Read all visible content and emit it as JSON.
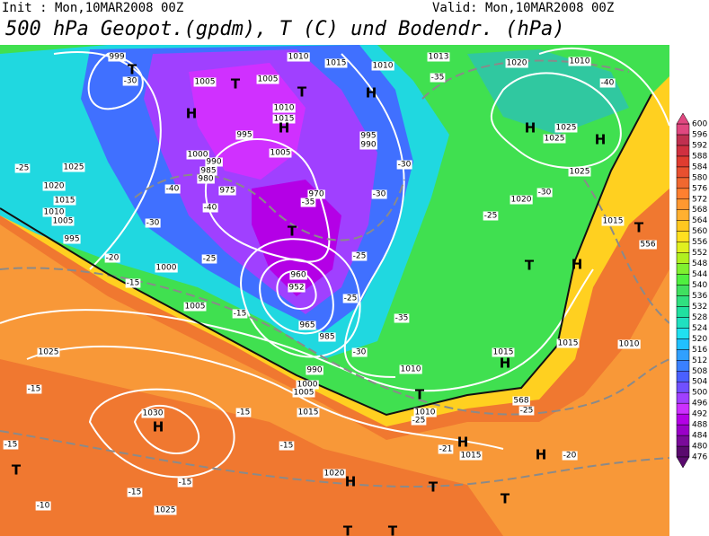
{
  "header": {
    "init": "Init : Mon,10MAR2008 00Z",
    "valid": "Valid: Mon,10MAR2008 00Z",
    "title": "500 hPa Geopot.(gpdm), T (C) und Bodendr. (hPa)"
  },
  "colorbar": {
    "levels": [
      "476",
      "480",
      "484",
      "488",
      "492",
      "496",
      "500",
      "504",
      "508",
      "512",
      "516",
      "520",
      "524",
      "528",
      "532",
      "536",
      "540",
      "544",
      "548",
      "552",
      "556",
      "560",
      "564",
      "568",
      "572",
      "576",
      "580",
      "584",
      "588",
      "592",
      "596",
      "600"
    ],
    "colors": [
      "#5a0a6e",
      "#7a0a9a",
      "#9a00c8",
      "#b400e6",
      "#cc30ff",
      "#a040ff",
      "#7050ff",
      "#4a60ff",
      "#3a80ff",
      "#30a0ff",
      "#20c0ff",
      "#20e0f0",
      "#20e0c0",
      "#20e0a0",
      "#30e080",
      "#40e060",
      "#50f040",
      "#80f030",
      "#b0f020",
      "#e0f020",
      "#ffe020",
      "#ffc820",
      "#ffb030",
      "#ff9830",
      "#ff8030",
      "#f06830",
      "#e85030",
      "#e03c30",
      "#d03040",
      "#c03050",
      "#e04880"
    ]
  },
  "map_labels": [
    "999",
    "T",
    "-30",
    "1005",
    "T",
    "H",
    "1005",
    "1010",
    "1015",
    "1010",
    "1013",
    "1020",
    "1010",
    "T",
    "H",
    "-35",
    "-40",
    "1010",
    "1015",
    "H",
    "995",
    "995",
    "990",
    "H",
    "1025",
    "1025",
    "H",
    "1000",
    "1005",
    "990",
    "985",
    "980",
    "-25",
    "1025",
    "-30",
    "1025",
    "975",
    "1020",
    "-40",
    "970",
    "-30",
    "-30",
    "1015",
    "-40",
    "-35",
    "1020",
    "1010",
    "1005",
    "-25",
    "1015",
    "T",
    "995",
    "-30",
    "T",
    "556",
    "-20",
    "1000",
    "-25",
    "H",
    "T",
    "-15",
    "-25",
    "960",
    "952",
    "-25",
    "1005",
    "-15",
    "965",
    "985",
    "-35",
    "-30",
    "1015",
    "H",
    "1015",
    "1010",
    "1025",
    "990",
    "1000",
    "1010",
    "1005",
    "-15",
    "T",
    "568",
    "-25",
    "1010",
    "-15",
    "1015",
    "1030",
    "H",
    "-25",
    "-15",
    "-15",
    "H",
    "-21",
    "1015",
    "H",
    "-20",
    "T",
    "1020",
    "H",
    "-15",
    "T",
    "-15",
    "T",
    "-10",
    "1025",
    "T",
    "T"
  ]
}
